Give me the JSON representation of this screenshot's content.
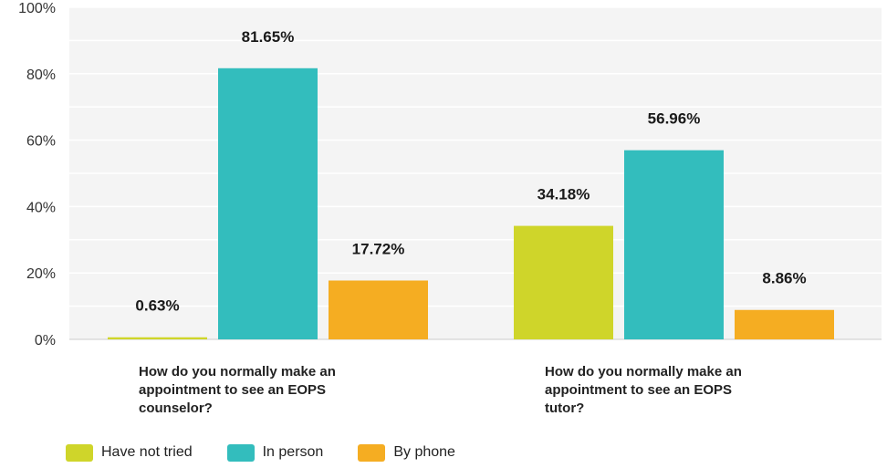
{
  "chart_data": {
    "type": "bar",
    "categories": [
      [
        "How do you normally make an",
        "appointment to see an EOPS",
        "counselor?"
      ],
      [
        "How do you normally make an",
        "appointment to see an EOPS",
        "tutor?"
      ]
    ],
    "series": [
      {
        "name": "Have not tried",
        "color": "#cfd52a",
        "values": [
          0.63,
          34.18
        ],
        "labels": [
          "0.63%",
          "34.18%"
        ]
      },
      {
        "name": "In person",
        "color": "#33bdbd",
        "values": [
          81.65,
          56.96
        ],
        "labels": [
          "81.65%",
          "56.96%"
        ]
      },
      {
        "name": "By phone",
        "color": "#f5ad22",
        "values": [
          17.72,
          8.86
        ],
        "labels": [
          "17.72%",
          "8.86%"
        ]
      }
    ],
    "y_ticks": [
      "0%",
      "20%",
      "40%",
      "60%",
      "80%",
      "100%"
    ],
    "ylim": [
      0,
      100
    ],
    "grid": true,
    "background": "#f4f4f4",
    "legend_position": "bottom-left"
  }
}
